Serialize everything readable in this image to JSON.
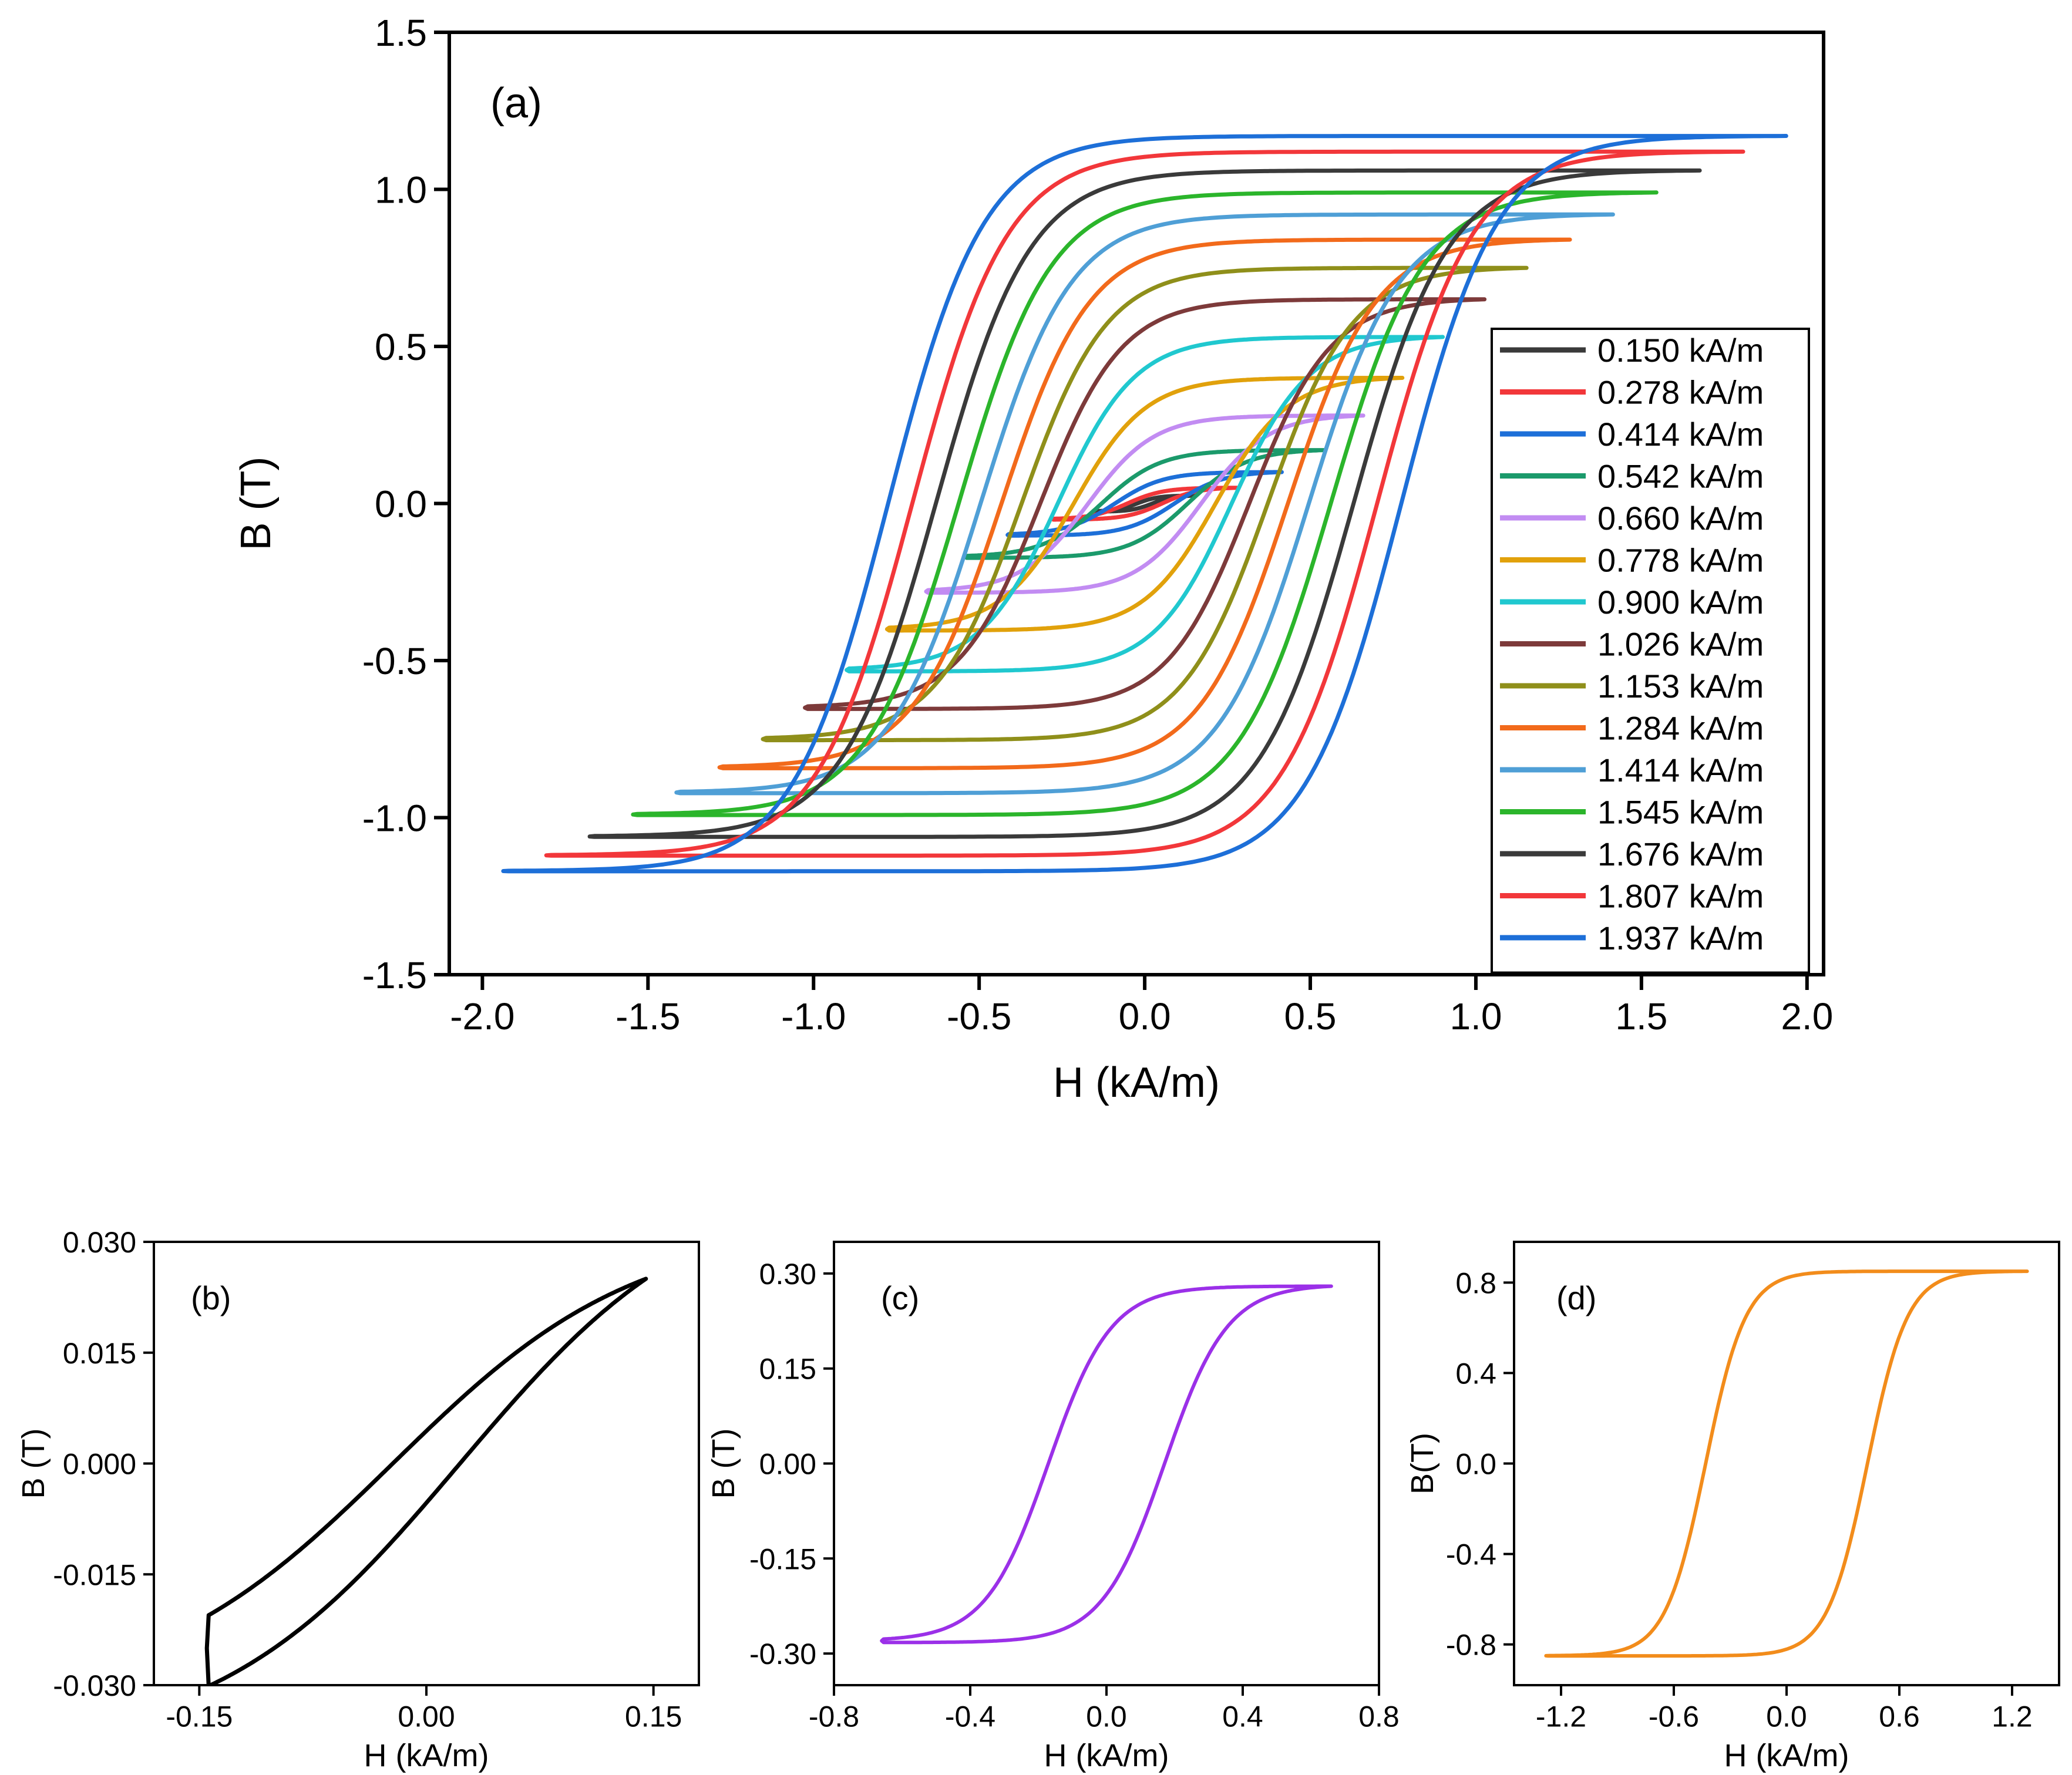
{
  "chart_data": [
    {
      "id": "a",
      "type": "line",
      "panel_label": "(a)",
      "xlabel": "H (kA/m)",
      "ylabel": "B (T)",
      "xlim": [
        -2.1,
        2.05
      ],
      "ylim": [
        -1.5,
        1.5
      ],
      "xticks": [
        -2.0,
        -1.5,
        -1.0,
        -0.5,
        0.0,
        0.5,
        1.0,
        1.5,
        2.0
      ],
      "xtick_labels": [
        "-2.0",
        "-1.5",
        "-1.0",
        "-0.5",
        "0.0",
        "0.5",
        "1.0",
        "1.5",
        "2.0"
      ],
      "yticks": [
        -1.5,
        -1.0,
        -0.5,
        0.0,
        0.5,
        1.0,
        1.5
      ],
      "ytick_labels": [
        "-1.5",
        "-1.0",
        "-0.5",
        "0.0",
        "0.5",
        "1.0",
        "1.5"
      ],
      "grid": false,
      "legend_position": "right",
      "series": [
        {
          "name": "0.150 kA/m",
          "color": "#3a3a3a",
          "Hmax": 0.15,
          "Bmax": 0.025
        },
        {
          "name": "0.278 kA/m",
          "color": "#f2373a",
          "Hmax": 0.278,
          "Bmax": 0.05
        },
        {
          "name": "0.414 kA/m",
          "color": "#1d6fd8",
          "Hmax": 0.414,
          "Bmax": 0.1
        },
        {
          "name": "0.542 kA/m",
          "color": "#1b9a6b",
          "Hmax": 0.542,
          "Bmax": 0.17
        },
        {
          "name": "0.660 kA/m",
          "color": "#c28cf2",
          "Hmax": 0.66,
          "Bmax": 0.28
        },
        {
          "name": "0.778 kA/m",
          "color": "#e1a10b",
          "Hmax": 0.778,
          "Bmax": 0.4
        },
        {
          "name": "0.900 kA/m",
          "color": "#20c8cf",
          "Hmax": 0.9,
          "Bmax": 0.53
        },
        {
          "name": "1.026 kA/m",
          "color": "#7d3a3a",
          "Hmax": 1.026,
          "Bmax": 0.65
        },
        {
          "name": "1.153 kA/m",
          "color": "#8f8f1a",
          "Hmax": 1.153,
          "Bmax": 0.75
        },
        {
          "name": "1.284 kA/m",
          "color": "#f26a1b",
          "Hmax": 1.284,
          "Bmax": 0.84
        },
        {
          "name": "1.414 kA/m",
          "color": "#4f9fd6",
          "Hmax": 1.414,
          "Bmax": 0.92
        },
        {
          "name": "1.545 kA/m",
          "color": "#2bb52b",
          "Hmax": 1.545,
          "Bmax": 0.99
        },
        {
          "name": "1.676 kA/m",
          "color": "#3a3a3a",
          "Hmax": 1.676,
          "Bmax": 1.06
        },
        {
          "name": "1.807 kA/m",
          "color": "#f2373a",
          "Hmax": 1.807,
          "Bmax": 1.12
        },
        {
          "name": "1.937 kA/m",
          "color": "#1d6fd8",
          "Hmax": 1.937,
          "Bmax": 1.17
        }
      ]
    },
    {
      "id": "b",
      "type": "line",
      "panel_label": "(b)",
      "xlabel": "H (kA/m)",
      "ylabel": "B (T)",
      "xlim": [
        -0.18,
        0.18
      ],
      "ylim": [
        -0.03,
        0.03
      ],
      "xticks": [
        -0.15,
        0.0,
        0.15
      ],
      "xtick_labels": [
        "-0.15",
        "0.00",
        "0.15"
      ],
      "yticks": [
        -0.03,
        -0.015,
        0.0,
        0.015,
        0.03
      ],
      "ytick_labels": [
        "-0.030",
        "-0.015",
        "0.000",
        "0.015",
        "0.030"
      ],
      "series": [
        {
          "name": "",
          "color": "#000000",
          "Hmax": 0.145,
          "Bmax": 0.025
        }
      ]
    },
    {
      "id": "c",
      "type": "line",
      "panel_label": "(c)",
      "xlabel": "H (kA/m)",
      "ylabel": "B (T)",
      "xlim": [
        -0.8,
        0.8
      ],
      "ylim": [
        -0.35,
        0.35
      ],
      "xticks": [
        -0.8,
        -0.4,
        0.0,
        0.4,
        0.8
      ],
      "xtick_labels": [
        "-0.8",
        "-0.4",
        "0.0",
        "0.4",
        "0.8"
      ],
      "yticks": [
        -0.3,
        -0.15,
        0.0,
        0.15,
        0.3
      ],
      "ytick_labels": [
        "-0.30",
        "-0.15",
        "0.00",
        "0.15",
        "0.30"
      ],
      "series": [
        {
          "name": "",
          "color": "#9b30e8",
          "Hmax": 0.66,
          "Bmax": 0.28
        }
      ]
    },
    {
      "id": "d",
      "type": "line",
      "panel_label": "(d)",
      "xlabel": "H (kA/m)",
      "ylabel": "B(T)",
      "xlim": [
        -1.45,
        1.45
      ],
      "ylim": [
        -0.98,
        0.98
      ],
      "xticks": [
        -1.2,
        -0.6,
        0.0,
        0.6,
        1.2
      ],
      "xtick_labels": [
        "-1.2",
        "-0.6",
        "0.0",
        "0.6",
        "1.2"
      ],
      "yticks": [
        -0.8,
        -0.4,
        0.0,
        0.4,
        0.8
      ],
      "ytick_labels": [
        "-0.8",
        "-0.4",
        "0.0",
        "0.4",
        "0.8"
      ],
      "series": [
        {
          "name": "",
          "color": "#f28c1b",
          "Hmax": 1.28,
          "Bmax": 0.85
        }
      ]
    }
  ]
}
